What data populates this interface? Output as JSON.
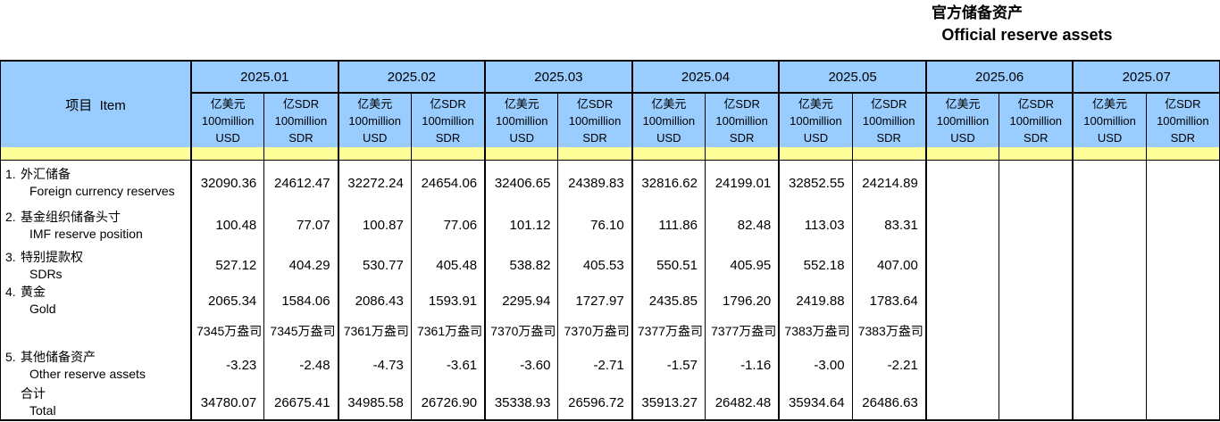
{
  "title": {
    "zh": "官方储备资产",
    "en": "Official reserve assets"
  },
  "colors": {
    "header_blue": "#99CCFF",
    "band_yellow": "#FFFF99",
    "border_black": "#000000",
    "background": "#FFFFFF"
  },
  "table": {
    "item_header": "项目  Item",
    "months": [
      "2025.01",
      "2025.02",
      "2025.03",
      "2025.04",
      "2025.05",
      "2025.06",
      "2025.07"
    ],
    "unit_usd": {
      "line1": "亿美元",
      "line2": "100million",
      "line3": "USD"
    },
    "unit_sdr": {
      "line1": "亿SDR",
      "line2": "100million",
      "line3": "SDR"
    },
    "rows": [
      {
        "num": "1.",
        "zh": "外汇储备",
        "en": "Foreign currency reserves",
        "type": "value",
        "values": [
          "32090.36",
          "24612.47",
          "32272.24",
          "24654.06",
          "32406.65",
          "24389.83",
          "32816.62",
          "24199.01",
          "32852.55",
          "24214.89",
          "",
          "",
          "",
          ""
        ]
      },
      {
        "num": "2.",
        "zh": "基金组织储备头寸",
        "en": "IMF reserve position",
        "type": "value",
        "values": [
          "100.48",
          "77.07",
          "100.87",
          "77.06",
          "101.12",
          "76.10",
          "111.86",
          "82.48",
          "113.03",
          "83.31",
          "",
          "",
          "",
          ""
        ]
      },
      {
        "num": "3.",
        "zh": "特别提款权",
        "en": "SDRs",
        "type": "value",
        "values": [
          "527.12",
          "404.29",
          "530.77",
          "405.48",
          "538.82",
          "405.53",
          "550.51",
          "405.95",
          "552.18",
          "407.00",
          "",
          "",
          "",
          ""
        ]
      },
      {
        "num": "4.",
        "zh": "黄金",
        "en": "Gold",
        "type": "value",
        "values": [
          "2065.34",
          "1584.06",
          "2086.43",
          "1593.91",
          "2295.94",
          "1727.97",
          "2435.85",
          "1796.20",
          "2419.88",
          "1783.64",
          "",
          "",
          "",
          ""
        ]
      },
      {
        "num": "",
        "zh": "",
        "en": "",
        "type": "ounce",
        "values": [
          "7345万盎司",
          "7345万盎司",
          "7361万盎司",
          "7361万盎司",
          "7370万盎司",
          "7370万盎司",
          "7377万盎司",
          "7377万盎司",
          "7383万盎司",
          "7383万盎司",
          "",
          "",
          "",
          ""
        ]
      },
      {
        "num": "5.",
        "zh": "其他储备资产",
        "en": "Other reserve assets",
        "type": "value",
        "values": [
          "-3.23",
          "-2.48",
          "-4.73",
          "-3.61",
          "-3.60",
          "-2.71",
          "-1.57",
          "-1.16",
          "-3.00",
          "-2.21",
          "",
          "",
          "",
          ""
        ]
      },
      {
        "num": "",
        "zh": "合计",
        "en": "Total",
        "type": "value",
        "values": [
          "34780.07",
          "26675.41",
          "34985.58",
          "26726.90",
          "35338.93",
          "26596.72",
          "35913.27",
          "26482.48",
          "35934.64",
          "26486.63",
          "",
          "",
          "",
          ""
        ]
      }
    ]
  }
}
